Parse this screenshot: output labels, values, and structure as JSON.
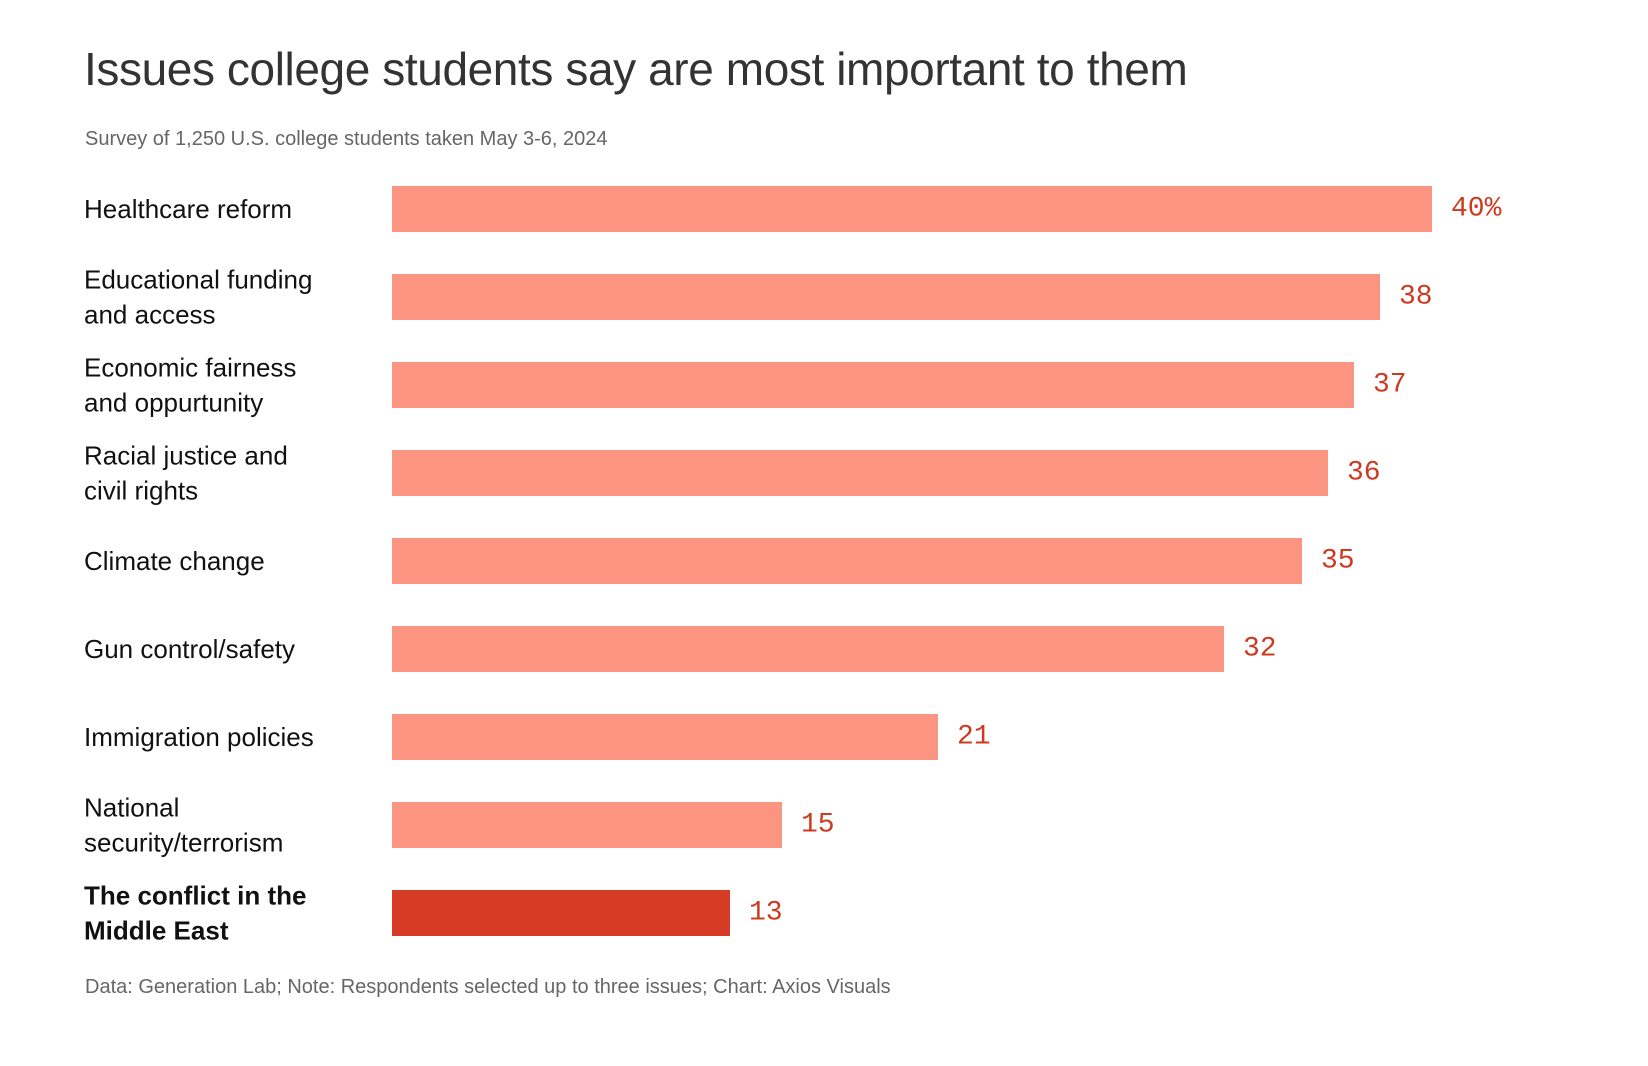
{
  "title": "Issues college students say are most important to them",
  "subtitle": "Survey of 1,250 U.S. college students taken May 3-6, 2024",
  "footnote": "Data: Generation Lab; Note: Respondents selected up to three issues; Chart: Axios Visuals",
  "colors": {
    "bar": "#fb9480",
    "highlight_bar": "#d63c25",
    "value_label": "#cc3a1f",
    "title": "#333333",
    "subtitle": "#666666"
  },
  "chart_data": {
    "type": "bar",
    "orientation": "horizontal",
    "title": "Issues college students say are most important to them",
    "subtitle": "Survey of 1,250 U.S. college students taken May 3-6, 2024",
    "xlabel": "",
    "ylabel": "",
    "xlim": [
      0,
      40
    ],
    "grid": false,
    "legend": "none",
    "unit_suffix": "%",
    "categories": [
      [
        "Healthcare reform"
      ],
      [
        "Educational funding",
        "and access"
      ],
      [
        "Economic fairness",
        "and oppurtunity"
      ],
      [
        "Racial justice and",
        "civil rights"
      ],
      [
        "Climate change"
      ],
      [
        "Gun control/safety"
      ],
      [
        "Immigration policies"
      ],
      [
        "National",
        "security/terrorism"
      ],
      [
        "The conflict in the",
        "Middle East"
      ]
    ],
    "values": [
      40,
      38,
      37,
      36,
      35,
      32,
      21,
      15,
      13
    ],
    "value_labels": [
      "40%",
      "38",
      "37",
      "36",
      "35",
      "32",
      "21",
      "15",
      "13"
    ],
    "highlighted": [
      false,
      false,
      false,
      false,
      false,
      false,
      false,
      false,
      true
    ]
  }
}
